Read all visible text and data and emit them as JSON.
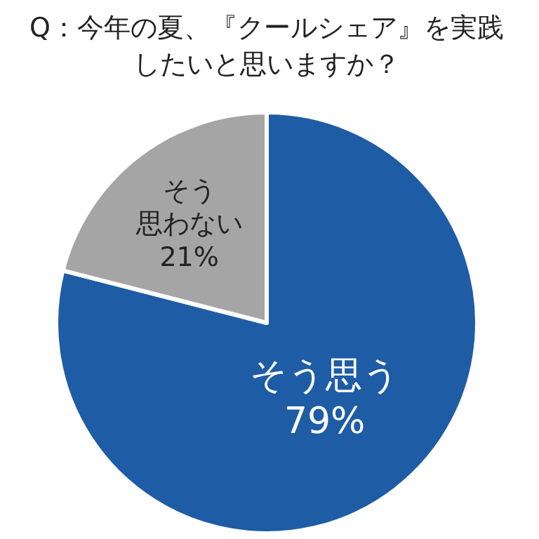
{
  "chart_data": {
    "type": "pie",
    "title": "Q：今年の夏、『クールシェア』を実践したいと思いますか？",
    "categories": [
      "そう思う",
      "そう思わない"
    ],
    "values": [
      79,
      21
    ],
    "value_labels": [
      "79%",
      "21%"
    ],
    "colors": [
      "#1f5ca6",
      "#a5a5a5"
    ]
  }
}
